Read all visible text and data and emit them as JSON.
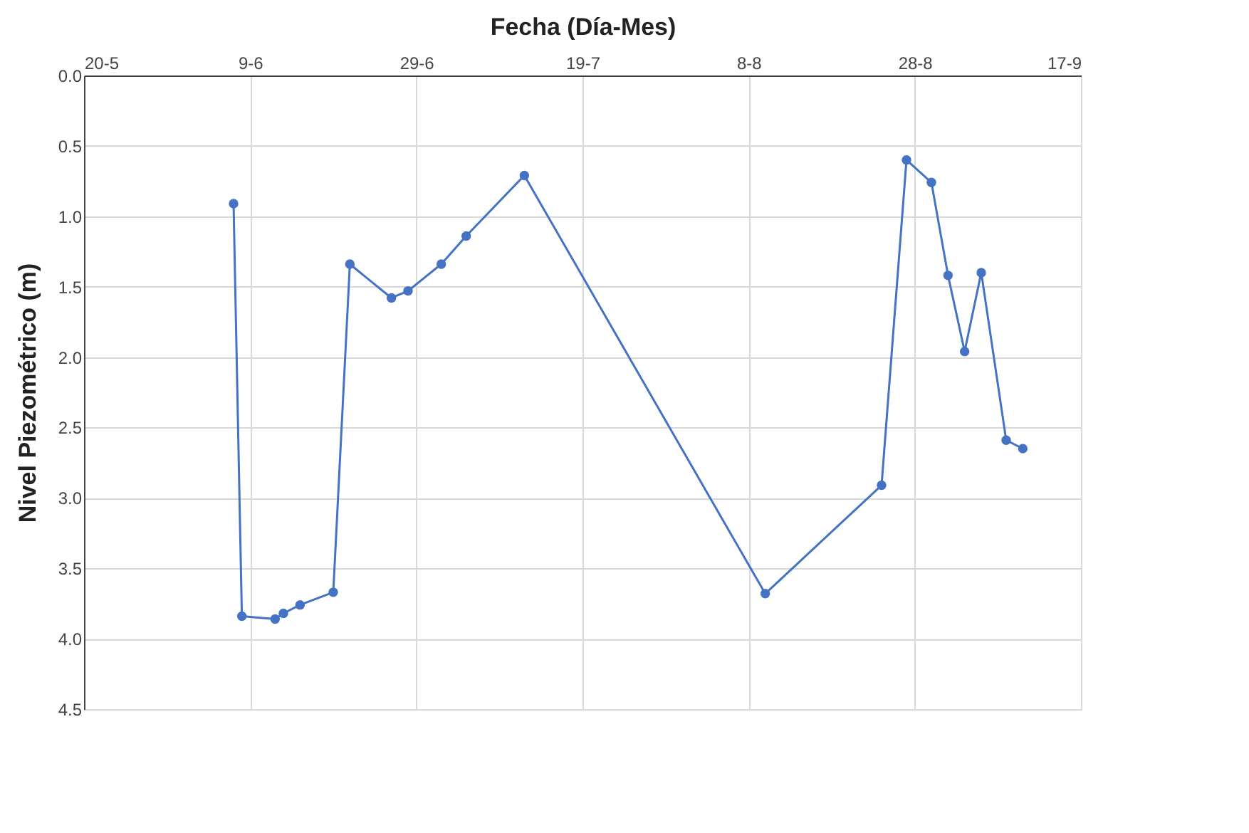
{
  "chart_data": {
    "type": "line",
    "xlabel": "Fecha (Día-Mes)",
    "ylabel": "Nivel Piezométrico (m)",
    "x": [
      "--06-07",
      "--06-08",
      "--06-12",
      "--06-13",
      "--06-15",
      "--06-19",
      "--06-21",
      "--06-26",
      "--06-28",
      "--07-02",
      "--07-05",
      "--07-12",
      "--08-10",
      "--08-24",
      "--08-27",
      "--08-30",
      "--09-01",
      "--09-03",
      "--09-05",
      "--09-08",
      "--09-10"
    ],
    "series": [
      {
        "color": "#4472c4",
        "values": [
          0.91,
          3.84,
          3.86,
          3.82,
          3.76,
          3.67,
          1.34,
          1.58,
          1.53,
          1.34,
          1.14,
          0.71,
          3.68,
          2.91,
          0.6,
          0.76,
          1.42,
          1.96,
          1.4,
          2.59,
          2.65
        ]
      }
    ],
    "xlim": [
      "--05-20",
      "--09-17"
    ],
    "xticks": [
      {
        "value": "--05-20",
        "label": "20-5"
      },
      {
        "value": "--06-09",
        "label": "9-6"
      },
      {
        "value": "--06-29",
        "label": "29-6"
      },
      {
        "value": "--07-19",
        "label": "19-7"
      },
      {
        "value": "--08-08",
        "label": "8-8"
      },
      {
        "value": "--08-28",
        "label": "28-8"
      },
      {
        "value": "--09-17",
        "label": "17-9"
      }
    ],
    "ylim": [
      4.5,
      0.0
    ],
    "yticks": [
      {
        "value": 0,
        "label": "0.0"
      },
      {
        "value": 0.5,
        "label": "0.5"
      },
      {
        "value": 1,
        "label": "1.0"
      },
      {
        "value": 1.5,
        "label": "1.5"
      },
      {
        "value": 2,
        "label": "2.0"
      },
      {
        "value": 2.5,
        "label": "2.5"
      },
      {
        "value": 3,
        "label": "3.0"
      },
      {
        "value": 3.5,
        "label": "3.5"
      },
      {
        "value": 4,
        "label": "4.0"
      },
      {
        "value": 4.5,
        "label": "4.5"
      }
    ],
    "grid": true,
    "marker": "circle",
    "line_style": "solid"
  }
}
